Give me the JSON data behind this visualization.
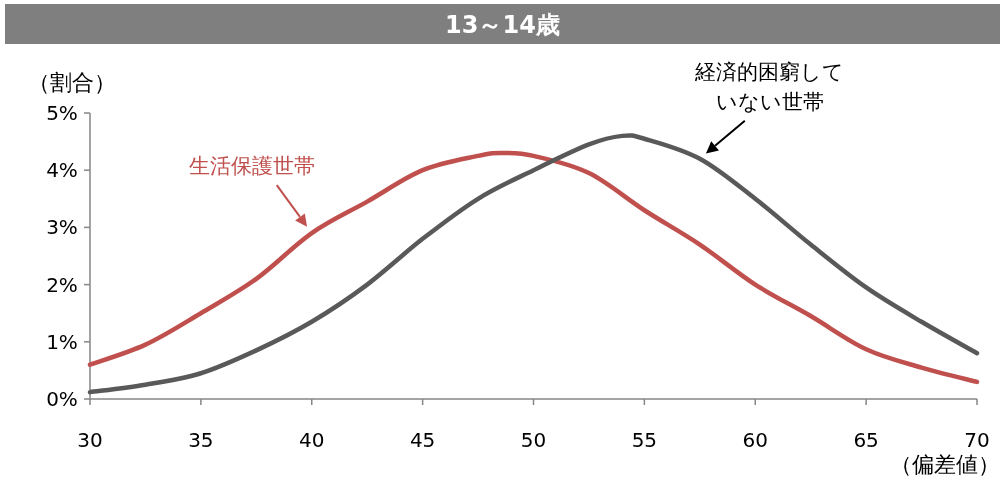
{
  "chart_data": {
    "type": "line",
    "title": "13～14歳",
    "xlabel": "（偏差値）",
    "ylabel": "（割合）",
    "xlim": [
      30,
      70
    ],
    "xticks": [
      30,
      35,
      40,
      45,
      50,
      55,
      60,
      65,
      70
    ],
    "ylim": [
      0,
      5
    ],
    "yticks": [
      {
        "value": 0,
        "label": "0%"
      },
      {
        "value": 1,
        "label": "1%"
      },
      {
        "value": 2,
        "label": "2%"
      },
      {
        "value": 3,
        "label": "3%"
      },
      {
        "value": 4,
        "label": "4%"
      },
      {
        "value": 5,
        "label": "5%"
      }
    ],
    "grid": false,
    "marker": "none",
    "line_style": "solid",
    "series": [
      {
        "name": "生活保護世帯",
        "color": "#c0504d",
        "x": [
          30,
          32.5,
          35,
          37.5,
          40,
          42.5,
          45,
          47.5,
          48.5,
          50,
          52.5,
          55,
          57.5,
          60,
          62.5,
          65,
          67.5,
          70
        ],
        "values": [
          0.6,
          0.95,
          1.5,
          2.1,
          2.9,
          3.45,
          4.0,
          4.25,
          4.3,
          4.25,
          3.95,
          3.3,
          2.7,
          2.0,
          1.45,
          0.87,
          0.55,
          0.3
        ]
      },
      {
        "name": "経済的困窮していない世帯",
        "color": "#595959",
        "x": [
          30,
          32.5,
          35,
          37.5,
          40,
          42.5,
          45,
          47.5,
          50,
          52.5,
          54,
          55,
          57.5,
          60,
          62.5,
          65,
          67.5,
          70
        ],
        "values": [
          0.12,
          0.25,
          0.45,
          0.85,
          1.35,
          2.0,
          2.8,
          3.5,
          4.0,
          4.45,
          4.6,
          4.55,
          4.2,
          3.5,
          2.7,
          1.95,
          1.35,
          0.8
        ]
      }
    ]
  }
}
